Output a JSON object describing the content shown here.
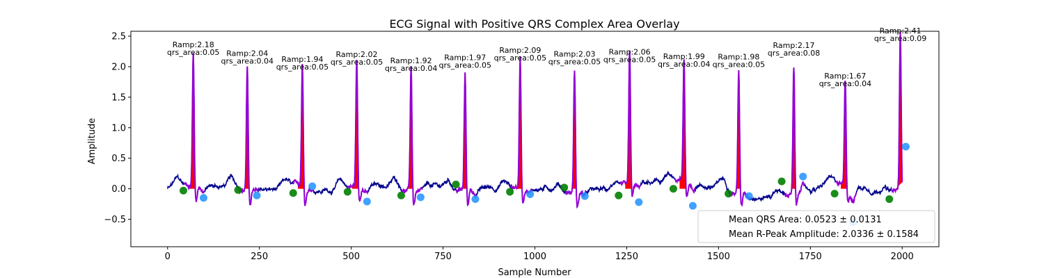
{
  "chart_data": {
    "type": "line",
    "title": "ECG Signal with Positive QRS Complex Area Overlay",
    "xlabel": "Sample Number",
    "ylabel": "Amplitude",
    "xlim": [
      -100,
      2100
    ],
    "ylim": [
      -0.95,
      2.58
    ],
    "xticks": [
      0,
      250,
      500,
      750,
      1000,
      1250,
      1500,
      1750,
      2000
    ],
    "yticks": [
      -0.5,
      0.0,
      0.5,
      1.0,
      1.5,
      2.0,
      2.5
    ],
    "xtick_labels": [
      "0",
      "250",
      "500",
      "750",
      "1000",
      "1250",
      "1500",
      "1750",
      "2000"
    ],
    "ytick_labels": [
      "−0.5",
      "0.0",
      "0.5",
      "1.0",
      "1.5",
      "2.0",
      "2.5"
    ],
    "grid": false,
    "colors": {
      "signal": "#00008b",
      "qrs_segment": "#9400d3",
      "qrs_area": "#ff0000",
      "q_marker": "#008000",
      "s_marker": "#1e90ff"
    },
    "beats": [
      {
        "r": 70,
        "amp": 2.18,
        "ramp_label": "Ramp:2.18",
        "area_label": "qrs_area:0.05",
        "q": [
          43,
          -0.03
        ],
        "s": [
          98,
          -0.15
        ]
      },
      {
        "r": 217,
        "amp": 2.04,
        "ramp_label": "Ramp:2.04",
        "area_label": "qrs_area:0.04",
        "q": [
          192,
          -0.02
        ],
        "s": [
          243,
          -0.11
        ]
      },
      {
        "r": 367,
        "amp": 1.94,
        "ramp_label": "Ramp:1.94",
        "area_label": "qrs_area:0.05",
        "q": [
          342,
          -0.07
        ],
        "s": [
          394,
          0.04
        ]
      },
      {
        "r": 515,
        "amp": 2.02,
        "ramp_label": "Ramp:2.02",
        "area_label": "qrs_area:0.05",
        "q": [
          490,
          -0.05
        ],
        "s": [
          543,
          -0.21
        ]
      },
      {
        "r": 663,
        "amp": 1.92,
        "ramp_label": "Ramp:1.92",
        "area_label": "qrs_area:0.04",
        "q": [
          636,
          -0.11
        ],
        "s": [
          689,
          -0.14
        ]
      },
      {
        "r": 810,
        "amp": 1.97,
        "ramp_label": "Ramp:1.97",
        "area_label": "qrs_area:0.05",
        "q": [
          785,
          0.07
        ],
        "s": [
          838,
          -0.17
        ]
      },
      {
        "r": 960,
        "amp": 2.09,
        "ramp_label": "Ramp:2.09",
        "area_label": "qrs_area:0.05",
        "q": [
          932,
          -0.05
        ],
        "s": [
          987,
          -0.09
        ]
      },
      {
        "r": 1108,
        "amp": 2.03,
        "ramp_label": "Ramp:2.03",
        "area_label": "qrs_area:0.05",
        "q": [
          1080,
          0.02
        ],
        "s": [
          1136,
          -0.12
        ]
      },
      {
        "r": 1258,
        "amp": 2.06,
        "ramp_label": "Ramp:2.06",
        "area_label": "qrs_area:0.05",
        "q": [
          1228,
          -0.11
        ],
        "s": [
          1283,
          -0.22
        ]
      },
      {
        "r": 1406,
        "amp": 1.99,
        "ramp_label": "Ramp:1.99",
        "area_label": "qrs_area:0.04",
        "q": [
          1377,
          0.0
        ],
        "s": [
          1430,
          -0.28
        ]
      },
      {
        "r": 1555,
        "amp": 1.98,
        "ramp_label": "Ramp:1.98",
        "area_label": "qrs_area:0.05",
        "q": [
          1527,
          -0.08
        ],
        "s": [
          1583,
          -0.12
        ]
      },
      {
        "r": 1705,
        "amp": 2.17,
        "ramp_label": "Ramp:2.17",
        "area_label": "qrs_area:0.08",
        "q": [
          1672,
          0.12
        ],
        "s": [
          1730,
          0.2
        ]
      },
      {
        "r": 1845,
        "amp": 1.67,
        "ramp_label": "Ramp:1.67",
        "area_label": "qrs_area:0.04",
        "q": [
          1816,
          -0.08
        ],
        "s": [
          1866,
          -0.55
        ]
      },
      {
        "r": 1995,
        "amp": 2.41,
        "ramp_label": "Ramp:2.41",
        "area_label": "qrs_area:0.09",
        "q": [
          1965,
          -0.17
        ],
        "s": [
          2010,
          0.69
        ]
      }
    ],
    "legend": {
      "placement": "lower-right",
      "entries": [
        "Mean QRS Area: 0.0523 ± 0.0131",
        "Mean R-Peak Amplitude: 2.0336 ± 0.1584"
      ]
    }
  }
}
